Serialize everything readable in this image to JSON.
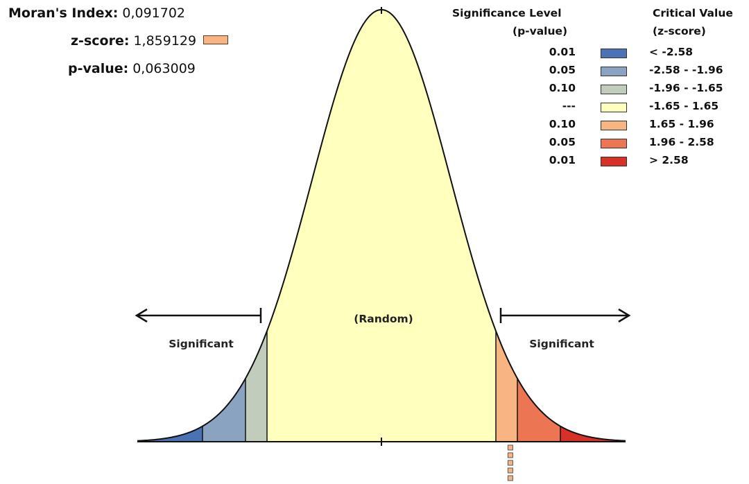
{
  "stats": {
    "morans_index": {
      "label": "Moran's Index:",
      "value": "0,091702"
    },
    "z_score": {
      "label": "z-score:",
      "value": "1,859129",
      "swatch_color": "#f9b484"
    },
    "p_value": {
      "label": "p-value:",
      "value": "0,063009"
    }
  },
  "legend": {
    "header_significance": [
      "Significance Level",
      "(p-value)"
    ],
    "header_critical": [
      "Critical Value",
      "(z-score)"
    ],
    "rows": [
      {
        "p": "0.01",
        "z": "< -2.58",
        "color": "#4a72b5"
      },
      {
        "p": "0.05",
        "z": "-2.58 - -1.96",
        "color": "#8aa3c0"
      },
      {
        "p": "0.10",
        "z": "-1.96 - -1.65",
        "color": "#c2ccbd"
      },
      {
        "p": "---",
        "z": "-1.65 - 1.65",
        "color": "#ffffbe"
      },
      {
        "p": "0.10",
        "z": "1.65 - 1.96",
        "color": "#f9b484"
      },
      {
        "p": "0.05",
        "z": "1.96 - 2.58",
        "color": "#ec7653"
      },
      {
        "p": "0.01",
        "z": "> 2.58",
        "color": "#d7312a"
      }
    ]
  },
  "chart_data": {
    "type": "area",
    "curve": "standard normal distribution",
    "region_breaks": [
      -2.58,
      -1.96,
      -1.65,
      1.65,
      1.96,
      2.58
    ],
    "region_colors": [
      "#4a72b5",
      "#8aa3c0",
      "#c2ccbd",
      "#ffffbe",
      "#f9b484",
      "#ec7653",
      "#d7312a"
    ],
    "xlim": [
      -4,
      4
    ],
    "observed_z": 1.859129,
    "labels": {
      "random": "(Random)",
      "significant_left": "Significant",
      "significant_right": "Significant"
    }
  }
}
